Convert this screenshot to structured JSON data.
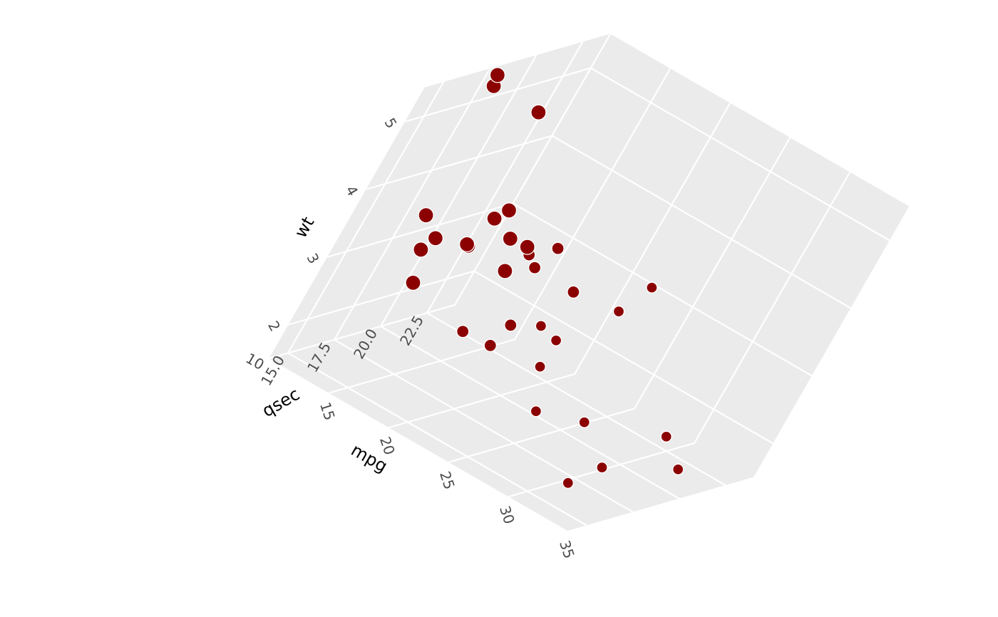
{
  "chart_data": {
    "type": "scatter",
    "projection": "3d",
    "xlabel": "mpg",
    "ylabel": "qsec",
    "zlabel": "wt",
    "x_ticks": [
      "15",
      "20",
      "25",
      "30",
      "35"
    ],
    "y_ticks": [
      "15.0",
      "17.5",
      "20.0",
      "22.5"
    ],
    "z_ticks": [
      "2",
      "3",
      "4",
      "5"
    ],
    "corner_tick": "10",
    "grid": true,
    "panel_color": "#ebebeb",
    "grid_color": "#ffffff",
    "point_color": "#8b0000",
    "point_outline": "#ffffff",
    "size_var": "cyl (no legend shown)",
    "points": [
      {
        "mpg": 21.0,
        "qsec": 16.46,
        "wt": 2.62,
        "cyl": 6
      },
      {
        "mpg": 21.0,
        "qsec": 17.02,
        "wt": 2.875,
        "cyl": 6
      },
      {
        "mpg": 22.8,
        "qsec": 18.61,
        "wt": 2.32,
        "cyl": 4
      },
      {
        "mpg": 21.4,
        "qsec": 19.44,
        "wt": 3.215,
        "cyl": 6
      },
      {
        "mpg": 18.7,
        "qsec": 17.02,
        "wt": 3.44,
        "cyl": 8
      },
      {
        "mpg": 18.1,
        "qsec": 20.22,
        "wt": 3.46,
        "cyl": 6
      },
      {
        "mpg": 14.3,
        "qsec": 15.84,
        "wt": 3.57,
        "cyl": 8
      },
      {
        "mpg": 24.4,
        "qsec": 20.0,
        "wt": 3.19,
        "cyl": 4
      },
      {
        "mpg": 22.8,
        "qsec": 22.9,
        "wt": 3.15,
        "cyl": 4
      },
      {
        "mpg": 19.2,
        "qsec": 18.3,
        "wt": 3.44,
        "cyl": 6
      },
      {
        "mpg": 17.8,
        "qsec": 18.9,
        "wt": 3.44,
        "cyl": 6
      },
      {
        "mpg": 16.4,
        "qsec": 17.4,
        "wt": 4.07,
        "cyl": 8
      },
      {
        "mpg": 17.3,
        "qsec": 17.6,
        "wt": 3.73,
        "cyl": 8
      },
      {
        "mpg": 15.2,
        "qsec": 18.0,
        "wt": 3.78,
        "cyl": 8
      },
      {
        "mpg": 10.4,
        "qsec": 17.98,
        "wt": 5.25,
        "cyl": 8
      },
      {
        "mpg": 10.4,
        "qsec": 17.82,
        "wt": 5.424,
        "cyl": 8
      },
      {
        "mpg": 14.7,
        "qsec": 17.42,
        "wt": 5.345,
        "cyl": 8
      },
      {
        "mpg": 32.4,
        "qsec": 19.47,
        "wt": 2.2,
        "cyl": 4
      },
      {
        "mpg": 30.4,
        "qsec": 18.52,
        "wt": 1.615,
        "cyl": 4
      },
      {
        "mpg": 33.9,
        "qsec": 19.9,
        "wt": 1.835,
        "cyl": 4
      },
      {
        "mpg": 21.5,
        "qsec": 20.01,
        "wt": 2.465,
        "cyl": 4
      },
      {
        "mpg": 15.5,
        "qsec": 16.87,
        "wt": 3.52,
        "cyl": 8
      },
      {
        "mpg": 15.2,
        "qsec": 17.3,
        "wt": 3.435,
        "cyl": 8
      },
      {
        "mpg": 13.3,
        "qsec": 15.41,
        "wt": 3.84,
        "cyl": 8
      },
      {
        "mpg": 19.2,
        "qsec": 17.05,
        "wt": 3.845,
        "cyl": 8
      },
      {
        "mpg": 27.3,
        "qsec": 18.9,
        "wt": 1.935,
        "cyl": 4
      },
      {
        "mpg": 26.0,
        "qsec": 16.7,
        "wt": 2.14,
        "cyl": 4
      },
      {
        "mpg": 30.4,
        "qsec": 16.9,
        "wt": 1.513,
        "cyl": 4
      },
      {
        "mpg": 15.8,
        "qsec": 14.5,
        "wt": 3.17,
        "cyl": 8
      },
      {
        "mpg": 19.7,
        "qsec": 15.5,
        "wt": 2.77,
        "cyl": 6
      },
      {
        "mpg": 15.0,
        "qsec": 14.6,
        "wt": 3.57,
        "cyl": 8
      },
      {
        "mpg": 21.4,
        "qsec": 18.6,
        "wt": 2.78,
        "cyl": 4
      }
    ]
  }
}
